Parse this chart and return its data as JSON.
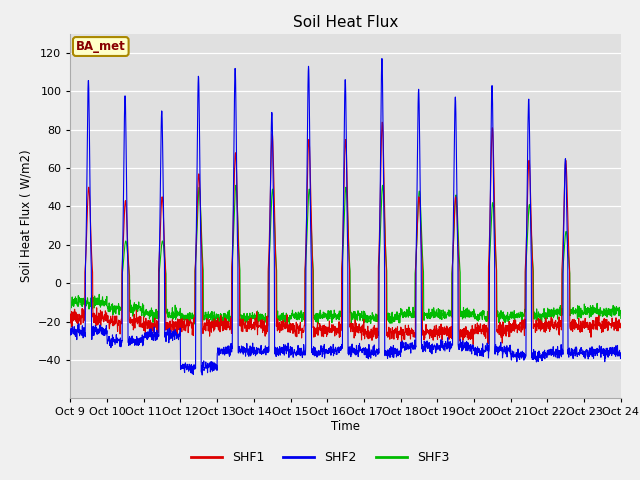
{
  "title": "Soil Heat Flux",
  "ylabel": "Soil Heat Flux ( W/m2)",
  "xlabel": "Time",
  "ylim": [
    -60,
    130
  ],
  "yticks": [
    -40,
    -20,
    0,
    20,
    40,
    60,
    80,
    100,
    120
  ],
  "fig_bg_color": "#f0f0f0",
  "plot_bg_color": "#e0e0e0",
  "shf1_color": "#dd0000",
  "shf2_color": "#0000ee",
  "shf3_color": "#00bb00",
  "legend_label": "BA_met",
  "legend_text_color": "#880000",
  "n_days": 15,
  "xtick_labels": [
    "Oct 9",
    "Oct 10",
    "Oct 11",
    "Oct 12",
    "Oct 13",
    "Oct 14",
    "Oct 15",
    "Oct 16",
    "Oct 17",
    "Oct 18",
    "Oct 19",
    "Oct 20",
    "Oct 21",
    "Oct 22",
    "Oct 23",
    "Oct 24"
  ],
  "series_labels": [
    "SHF1",
    "SHF2",
    "SHF3"
  ],
  "shf2_peaks": [
    106,
    98,
    90,
    108,
    112,
    89,
    113,
    106,
    117,
    101,
    97,
    103,
    96,
    65,
    0
  ],
  "shf1_peaks": [
    50,
    43,
    45,
    57,
    68,
    78,
    75,
    75,
    84,
    45,
    45,
    81,
    64,
    64,
    0
  ],
  "shf3_peaks": [
    0,
    22,
    22,
    50,
    51,
    49,
    49,
    50,
    51,
    48,
    46,
    42,
    41,
    27,
    0
  ],
  "shf2_neg": [
    -25,
    -30,
    -27,
    -44,
    -35,
    -35,
    -36,
    -35,
    -36,
    -33,
    -33,
    -35,
    -38,
    -36,
    -36
  ],
  "shf1_neg": [
    -18,
    -20,
    -22,
    -22,
    -22,
    -22,
    -24,
    -24,
    -26,
    -26,
    -26,
    -24,
    -22,
    -22,
    -22
  ],
  "shf3_neg": [
    -10,
    -13,
    -16,
    -18,
    -18,
    -18,
    -17,
    -17,
    -18,
    -16,
    -16,
    -17,
    -17,
    -15,
    -15
  ]
}
